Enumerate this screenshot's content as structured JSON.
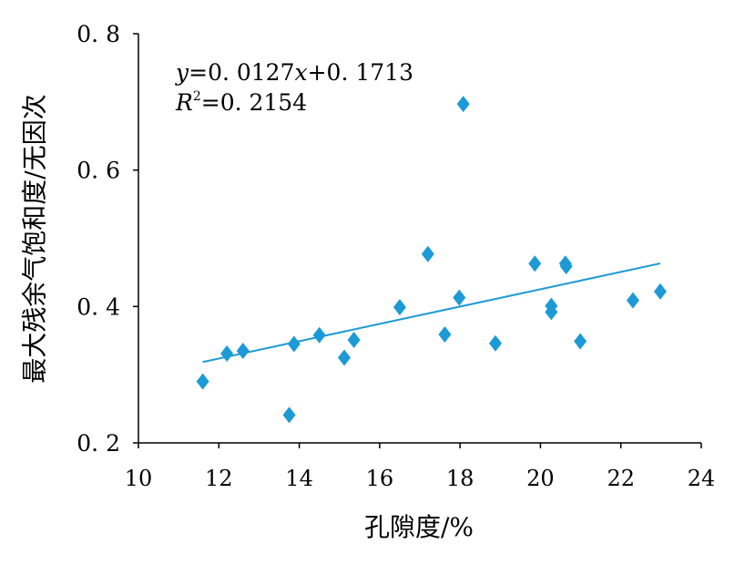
{
  "chart_data": {
    "type": "scatter",
    "title": "",
    "xlabel": "孔隙度/%",
    "ylabel": "最大残余气饱和度/无因次",
    "xlim": [
      10,
      24
    ],
    "ylim": [
      0.2,
      0.8
    ],
    "x_ticks": [
      10,
      12,
      14,
      16,
      18,
      20,
      22,
      24
    ],
    "x_tick_labels": [
      "10",
      "12",
      "14",
      "16",
      "18",
      "20",
      "22",
      "24"
    ],
    "y_ticks": [
      0.2,
      0.4,
      0.6,
      0.8
    ],
    "y_tick_labels": [
      "0. 2",
      "0. 4",
      "0. 6",
      "0. 8"
    ],
    "grid": false,
    "legend": "none",
    "series": [
      {
        "marker": "diamond",
        "x": [
          11.6,
          12.2,
          12.6,
          13.75,
          13.87,
          14.5,
          15.12,
          15.36,
          16.5,
          17.2,
          17.62,
          17.98,
          18.08,
          18.88,
          19.86,
          20.27,
          20.27,
          20.62,
          20.64,
          20.99,
          22.3,
          22.98
        ],
        "y": [
          0.29,
          0.331,
          0.335,
          0.241,
          0.345,
          0.358,
          0.325,
          0.351,
          0.399,
          0.477,
          0.359,
          0.413,
          0.697,
          0.346,
          0.463,
          0.401,
          0.392,
          0.463,
          0.459,
          0.349,
          0.409,
          0.422
        ]
      }
    ],
    "trendline": {
      "type": "linear",
      "slope": 0.0127,
      "intercept": 0.1713,
      "r2": 0.2154,
      "equation_parts": [
        "y",
        "=0. 0127",
        "x",
        "+0. 1713"
      ],
      "r2_parts": [
        "R",
        "2",
        "=0. 2154"
      ]
    }
  },
  "colors": {
    "marker": "#1b9ad6",
    "trendline": "#1b9ad6",
    "axis": "#000000"
  }
}
